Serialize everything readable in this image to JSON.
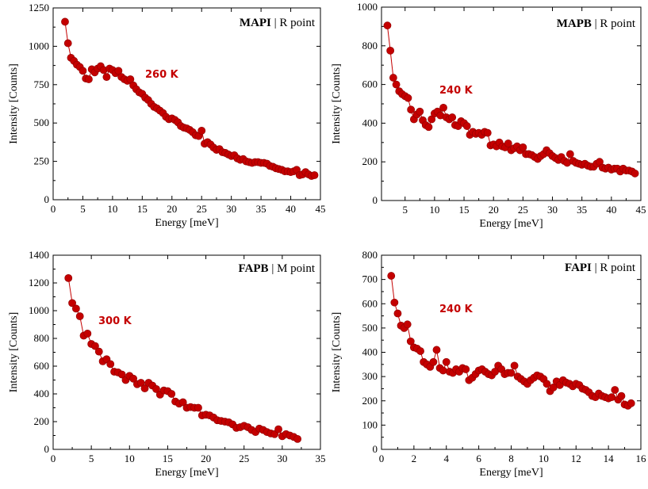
{
  "colors": {
    "series": "#c40000",
    "axis": "#000000"
  },
  "chart_data": [
    {
      "type": "scatter",
      "title_bold": "MAPI",
      "title_rest": " | R point",
      "annotation": "260 K",
      "xlabel": "Energy [meV]",
      "ylabel": "Intensity [Counts]",
      "xlim": [
        0,
        45
      ],
      "ylim": [
        0,
        1250
      ],
      "xticks": [
        0,
        5,
        10,
        15,
        20,
        25,
        30,
        35,
        40,
        45
      ],
      "yticks": [
        0,
        250,
        500,
        750,
        1000,
        1250
      ],
      "x": [
        2.0,
        2.5,
        3.0,
        3.5,
        4.0,
        4.5,
        5.0,
        5.5,
        6.0,
        6.5,
        7.0,
        7.5,
        8.0,
        8.5,
        9.0,
        9.5,
        10.0,
        10.5,
        11.0,
        11.5,
        12.0,
        12.5,
        13.0,
        13.5,
        14.0,
        14.5,
        15.0,
        15.5,
        16.0,
        16.5,
        17.0,
        17.5,
        18.0,
        18.5,
        19.0,
        19.5,
        20.0,
        20.5,
        21.0,
        21.5,
        22.0,
        22.5,
        23.0,
        23.5,
        24.0,
        24.5,
        25.0,
        25.5,
        26.0,
        26.5,
        27.0,
        27.5,
        28.0,
        28.5,
        29.0,
        29.5,
        30.0,
        30.5,
        31.0,
        31.5,
        32.0,
        32.5,
        33.0,
        33.5,
        34.0,
        34.5,
        35.0,
        35.5,
        36.0,
        36.5,
        37.0,
        37.5,
        38.0,
        38.5,
        39.0,
        39.5,
        40.0,
        40.5,
        41.0,
        41.5,
        42.0,
        42.5,
        43.0,
        43.5,
        44.0
      ],
      "y": [
        1160,
        1020,
        925,
        905,
        880,
        865,
        840,
        790,
        785,
        850,
        830,
        855,
        870,
        845,
        800,
        855,
        845,
        825,
        840,
        800,
        785,
        775,
        785,
        745,
        720,
        700,
        690,
        665,
        650,
        625,
        605,
        595,
        580,
        565,
        540,
        525,
        530,
        520,
        505,
        480,
        470,
        465,
        455,
        440,
        420,
        415,
        450,
        365,
        375,
        360,
        340,
        325,
        330,
        310,
        305,
        295,
        285,
        290,
        270,
        260,
        265,
        250,
        245,
        240,
        245,
        245,
        240,
        240,
        235,
        220,
        215,
        205,
        200,
        195,
        185,
        185,
        180,
        185,
        195,
        160,
        165,
        180,
        165,
        155,
        160
      ],
      "yerr": 18
    },
    {
      "type": "scatter",
      "title_bold": "MAPB",
      "title_rest": " | R point",
      "annotation": "240 K",
      "xlabel": "Energy [meV]",
      "ylabel": "Intensity [Counts]",
      "xlim": [
        1,
        45
      ],
      "ylim": [
        0,
        1000
      ],
      "xticks": [
        5,
        10,
        15,
        20,
        25,
        30,
        35,
        40,
        45
      ],
      "yticks": [
        0,
        200,
        400,
        600,
        800,
        1000
      ],
      "x": [
        2.0,
        2.5,
        3.0,
        3.5,
        4.0,
        4.5,
        5.0,
        5.5,
        6.0,
        6.5,
        7.0,
        7.5,
        8.0,
        8.5,
        9.0,
        9.5,
        10.0,
        10.5,
        11.0,
        11.5,
        12.0,
        12.5,
        13.0,
        13.5,
        14.0,
        14.5,
        15.0,
        15.5,
        16.0,
        16.5,
        17.0,
        17.5,
        18.0,
        18.5,
        19.0,
        19.5,
        20.0,
        20.5,
        21.0,
        21.5,
        22.0,
        22.5,
        23.0,
        23.5,
        24.0,
        24.5,
        25.0,
        25.5,
        26.0,
        26.5,
        27.0,
        27.5,
        28.0,
        28.5,
        29.0,
        29.5,
        30.0,
        30.5,
        31.0,
        31.5,
        32.0,
        32.5,
        33.0,
        33.5,
        34.0,
        34.5,
        35.0,
        35.5,
        36.0,
        36.5,
        37.0,
        37.5,
        38.0,
        38.5,
        39.0,
        39.5,
        40.0,
        40.5,
        41.0,
        41.5,
        42.0,
        42.5,
        43.0,
        43.5,
        44.0
      ],
      "y": [
        905,
        775,
        635,
        600,
        565,
        550,
        540,
        530,
        470,
        420,
        445,
        460,
        415,
        390,
        380,
        420,
        450,
        460,
        440,
        480,
        430,
        420,
        430,
        390,
        385,
        410,
        400,
        385,
        340,
        355,
        345,
        350,
        340,
        355,
        350,
        285,
        290,
        280,
        300,
        280,
        275,
        295,
        260,
        270,
        280,
        260,
        275,
        240,
        240,
        235,
        225,
        215,
        230,
        240,
        260,
        245,
        230,
        220,
        210,
        225,
        205,
        195,
        240,
        205,
        195,
        190,
        185,
        190,
        180,
        175,
        175,
        190,
        200,
        170,
        165,
        170,
        160,
        165,
        165,
        150,
        165,
        155,
        155,
        150,
        140
      ],
      "yerr": 16
    },
    {
      "type": "scatter",
      "title_bold": "FAPB",
      "title_rest": " | M point",
      "annotation": "300 K",
      "xlabel": "Energy [meV]",
      "ylabel": "Intensity [Counts]",
      "xlim": [
        0,
        35
      ],
      "ylim": [
        0,
        1400
      ],
      "xticks": [
        0,
        5,
        10,
        15,
        20,
        25,
        30,
        35
      ],
      "yticks": [
        0,
        200,
        400,
        600,
        800,
        1000,
        1200,
        1400
      ],
      "x": [
        2.0,
        2.5,
        3.0,
        3.5,
        4.0,
        4.5,
        5.0,
        5.5,
        6.0,
        6.5,
        7.0,
        7.5,
        8.0,
        8.5,
        9.0,
        9.5,
        10.0,
        10.5,
        11.0,
        11.5,
        12.0,
        12.5,
        13.0,
        13.5,
        14.0,
        14.5,
        15.0,
        15.5,
        16.0,
        16.5,
        17.0,
        17.5,
        18.0,
        18.5,
        19.0,
        19.5,
        20.0,
        20.5,
        21.0,
        21.5,
        22.0,
        22.5,
        23.0,
        23.5,
        24.0,
        24.5,
        25.0,
        25.5,
        26.0,
        26.5,
        27.0,
        27.5,
        28.0,
        28.5,
        29.0,
        29.5,
        30.0,
        30.5,
        31.0,
        31.5,
        32.0
      ],
      "y": [
        1235,
        1055,
        1015,
        960,
        820,
        835,
        760,
        745,
        705,
        635,
        650,
        615,
        560,
        555,
        540,
        500,
        530,
        510,
        470,
        480,
        440,
        480,
        460,
        435,
        395,
        425,
        420,
        400,
        345,
        330,
        340,
        300,
        305,
        300,
        300,
        245,
        250,
        245,
        230,
        210,
        205,
        200,
        195,
        180,
        155,
        160,
        170,
        160,
        140,
        125,
        150,
        140,
        125,
        115,
        110,
        145,
        95,
        110,
        100,
        90,
        75
      ],
      "yerr": 22
    },
    {
      "type": "scatter",
      "title_bold": "FAPI",
      "title_rest": " | R point",
      "annotation": "240 K",
      "xlabel": "Energy [meV]",
      "ylabel": "Intensity [Counts]",
      "xlim": [
        0,
        16
      ],
      "ylim": [
        0,
        800
      ],
      "xticks": [
        0,
        2,
        4,
        6,
        8,
        10,
        12,
        14,
        16
      ],
      "yticks": [
        0,
        100,
        200,
        300,
        400,
        500,
        600,
        700,
        800
      ],
      "x": [
        0.6,
        0.8,
        1.0,
        1.2,
        1.4,
        1.6,
        1.8,
        2.0,
        2.2,
        2.4,
        2.6,
        2.8,
        3.0,
        3.2,
        3.4,
        3.6,
        3.8,
        4.0,
        4.2,
        4.4,
        4.6,
        4.8,
        5.0,
        5.2,
        5.4,
        5.6,
        5.8,
        6.0,
        6.2,
        6.4,
        6.6,
        6.8,
        7.0,
        7.2,
        7.4,
        7.6,
        7.8,
        8.0,
        8.2,
        8.4,
        8.6,
        8.8,
        9.0,
        9.2,
        9.4,
        9.6,
        9.8,
        10.0,
        10.2,
        10.4,
        10.6,
        10.8,
        11.0,
        11.2,
        11.4,
        11.6,
        11.8,
        12.0,
        12.2,
        12.4,
        12.6,
        12.8,
        13.0,
        13.2,
        13.4,
        13.6,
        13.8,
        14.0,
        14.2,
        14.4,
        14.6,
        14.8,
        15.0,
        15.2,
        15.4
      ],
      "y": [
        715,
        605,
        560,
        510,
        500,
        515,
        445,
        420,
        415,
        405,
        360,
        350,
        340,
        360,
        410,
        335,
        325,
        360,
        320,
        315,
        330,
        320,
        335,
        330,
        285,
        295,
        310,
        325,
        330,
        320,
        310,
        305,
        320,
        345,
        330,
        310,
        315,
        315,
        345,
        300,
        290,
        280,
        270,
        285,
        295,
        305,
        300,
        290,
        270,
        240,
        255,
        280,
        265,
        285,
        275,
        270,
        260,
        270,
        265,
        250,
        245,
        235,
        220,
        215,
        230,
        220,
        215,
        210,
        215,
        245,
        205,
        220,
        185,
        180,
        190
      ],
      "yerr": 14
    }
  ]
}
